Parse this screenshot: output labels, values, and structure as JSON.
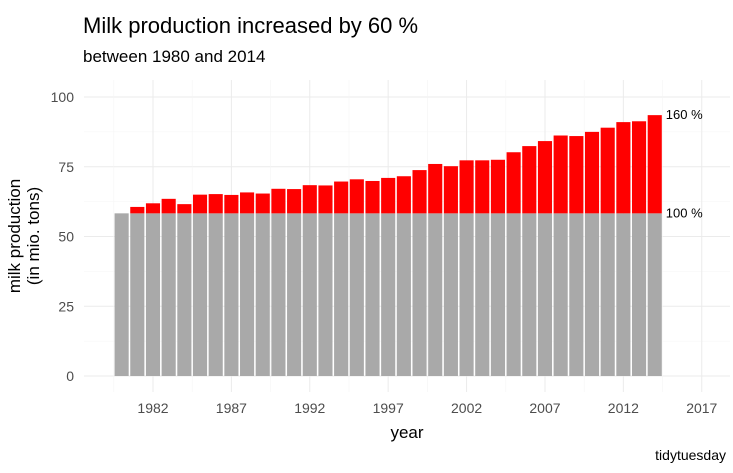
{
  "chart_data": {
    "type": "bar",
    "title": "Milk production increased by 60 %",
    "subtitle": "between 1980 and 2014",
    "xlabel": "year",
    "ylabel_lines": [
      "milk production",
      "(in mio. tons)"
    ],
    "caption": "tidytuesday",
    "baseline_value": 58.3,
    "baseline_color": "#a9a9a9",
    "increase_color": "#ff0000",
    "ylim": [
      0,
      100
    ],
    "y_ticks": [
      0,
      25,
      50,
      75,
      100
    ],
    "y_tick_labels": [
      "0",
      "25",
      "50",
      "75",
      "100"
    ],
    "xlim": [
      1977.6,
      2018.8
    ],
    "x_ticks": [
      1982,
      1987,
      1992,
      1997,
      2002,
      2007,
      2012,
      2017
    ],
    "x_tick_labels": [
      "1982",
      "1987",
      "1992",
      "1997",
      "2002",
      "2007",
      "2012",
      "2017"
    ],
    "categories": [
      1980,
      1981,
      1982,
      1983,
      1984,
      1985,
      1986,
      1987,
      1988,
      1989,
      1990,
      1991,
      1992,
      1993,
      1994,
      1995,
      1996,
      1997,
      1998,
      1999,
      2000,
      2001,
      2002,
      2003,
      2004,
      2005,
      2006,
      2007,
      2008,
      2009,
      2010,
      2011,
      2012,
      2013,
      2014
    ],
    "values": [
      58.3,
      60.6,
      61.9,
      63.5,
      61.6,
      65.0,
      65.2,
      64.9,
      65.8,
      65.4,
      67.1,
      67.0,
      68.4,
      68.3,
      69.7,
      70.5,
      69.9,
      71.0,
      71.6,
      73.8,
      76.0,
      75.2,
      77.3,
      77.3,
      77.5,
      80.2,
      82.4,
      84.2,
      86.2,
      86.0,
      87.5,
      89.0,
      91.0,
      91.3,
      93.5
    ],
    "reference_lines": [
      {
        "label": "160 %",
        "value": 93.5
      },
      {
        "label": "100 %",
        "value": 58.3
      }
    ],
    "grid": true,
    "legend": "none"
  }
}
